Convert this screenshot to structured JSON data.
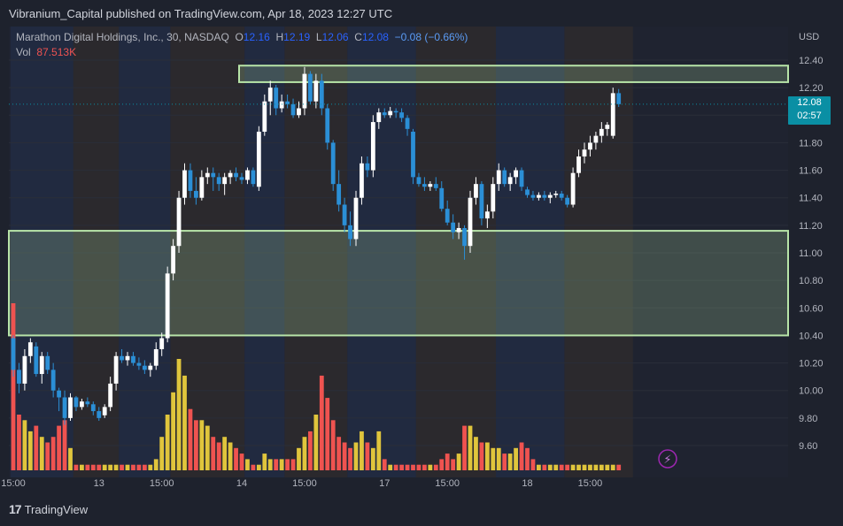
{
  "header": {
    "published": "Vibranium_Capital published on TradingView.com, Apr 18, 2023 12:27 UTC"
  },
  "legend": {
    "symbol": "Marathon Digital Holdings, Inc., 30, NASDAQ",
    "o_label": "O",
    "o": "12.16",
    "h_label": "H",
    "h": "12.19",
    "l_label": "L",
    "l": "12.06",
    "c_label": "C",
    "c": "12.08",
    "change": "−0.08 (−0.66%)",
    "vol_label": "Vol",
    "vol": "87.513K"
  },
  "price_tag": {
    "price": "12.08",
    "countdown": "02:57"
  },
  "footer": {
    "brand": "TradingView",
    "logo": "17"
  },
  "colors": {
    "up": "#ffffff",
    "down": "#2b8fd6",
    "vol_up": "#e0c53c",
    "vol_down": "#ef5350",
    "zone": "#b7e4a8",
    "bg": "#1e222d",
    "session_blue": "#23324f",
    "session_brown": "#35302c"
  },
  "chart_data": {
    "type": "candlestick",
    "currency": "USD",
    "timeframe": "30",
    "y_ticks": [
      "12.40",
      "12.20",
      "12.00",
      "11.80",
      "11.60",
      "11.40",
      "11.20",
      "11.00",
      "10.80",
      "10.60",
      "10.40",
      "10.20",
      "10.00",
      "9.80",
      "9.60"
    ],
    "ylim": [
      9.5,
      12.6
    ],
    "x_ticks": [
      {
        "label": "15:00",
        "index": 0
      },
      {
        "label": "13",
        "index": 15
      },
      {
        "label": "15:00",
        "index": 26
      },
      {
        "label": "14",
        "index": 40
      },
      {
        "label": "15:00",
        "index": 51
      },
      {
        "label": "17",
        "index": 65
      },
      {
        "label": "15:00",
        "index": 76
      },
      {
        "label": "18",
        "index": 90
      },
      {
        "label": "15:00",
        "index": 101
      }
    ],
    "zones": [
      {
        "top": 12.36,
        "bottom": 12.24,
        "start_index": 40
      },
      {
        "top": 11.16,
        "bottom": 10.4,
        "start_index": 0
      }
    ],
    "candles": [
      [
        10.38,
        10.4,
        10.1,
        10.15,
        30
      ],
      [
        10.15,
        10.2,
        9.98,
        10.05,
        10
      ],
      [
        10.05,
        10.3,
        10.0,
        10.25,
        9
      ],
      [
        10.25,
        10.38,
        10.2,
        10.35,
        7
      ],
      [
        10.32,
        10.35,
        10.1,
        10.12,
        8
      ],
      [
        10.12,
        10.28,
        10.05,
        10.25,
        6
      ],
      [
        10.25,
        10.28,
        10.12,
        10.15,
        5
      ],
      [
        10.15,
        10.2,
        9.95,
        10.0,
        6
      ],
      [
        10.0,
        10.02,
        9.85,
        9.95,
        8
      ],
      [
        9.95,
        10.0,
        9.75,
        9.8,
        9
      ],
      [
        9.8,
        9.98,
        9.78,
        9.95,
        4
      ],
      [
        9.95,
        9.96,
        9.85,
        9.88,
        1
      ],
      [
        9.88,
        9.94,
        9.86,
        9.92,
        1
      ],
      [
        9.92,
        9.95,
        9.88,
        9.9,
        1
      ],
      [
        9.9,
        9.92,
        9.82,
        9.85,
        1
      ],
      [
        9.85,
        9.88,
        9.78,
        9.8,
        1
      ],
      [
        9.82,
        9.9,
        9.8,
        9.88,
        1
      ],
      [
        9.88,
        10.1,
        9.85,
        10.05,
        1
      ],
      [
        10.05,
        10.28,
        10.0,
        10.25,
        1
      ],
      [
        10.25,
        10.3,
        10.2,
        10.22,
        1
      ],
      [
        10.22,
        10.28,
        10.18,
        10.25,
        1
      ],
      [
        10.25,
        10.28,
        10.18,
        10.2,
        1
      ],
      [
        10.2,
        10.24,
        10.15,
        10.18,
        1
      ],
      [
        10.18,
        10.22,
        10.12,
        10.15,
        1
      ],
      [
        10.15,
        10.2,
        10.1,
        10.18,
        1
      ],
      [
        10.18,
        10.35,
        10.15,
        10.3,
        2
      ],
      [
        10.3,
        10.42,
        10.25,
        10.38,
        6
      ],
      [
        10.38,
        10.9,
        10.35,
        10.85,
        10
      ],
      [
        10.85,
        11.1,
        10.8,
        11.05,
        14
      ],
      [
        11.05,
        11.45,
        11.0,
        11.4,
        20
      ],
      [
        11.4,
        11.65,
        11.35,
        11.6,
        17
      ],
      [
        11.6,
        11.65,
        11.4,
        11.45,
        11
      ],
      [
        11.45,
        11.55,
        11.35,
        11.4,
        9
      ],
      [
        11.4,
        11.6,
        11.38,
        11.55,
        9
      ],
      [
        11.55,
        11.62,
        11.5,
        11.58,
        8
      ],
      [
        11.58,
        11.62,
        11.45,
        11.55,
        6
      ],
      [
        11.55,
        11.58,
        11.45,
        11.5,
        5
      ],
      [
        11.5,
        11.58,
        11.42,
        11.55,
        6
      ],
      [
        11.55,
        11.6,
        11.5,
        11.58,
        5
      ],
      [
        11.58,
        11.62,
        11.52,
        11.55,
        4
      ],
      [
        11.55,
        11.58,
        11.5,
        11.53,
        3
      ],
      [
        11.53,
        11.62,
        11.5,
        11.6,
        2
      ],
      [
        11.6,
        11.62,
        11.48,
        11.5,
        1
      ],
      [
        11.48,
        11.92,
        11.45,
        11.88,
        1
      ],
      [
        11.88,
        12.15,
        11.85,
        12.1,
        3
      ],
      [
        12.1,
        12.25,
        12.0,
        12.2,
        2
      ],
      [
        12.2,
        12.22,
        12.0,
        12.05,
        2
      ],
      [
        12.05,
        12.15,
        12.02,
        12.1,
        2
      ],
      [
        12.1,
        12.15,
        12.05,
        12.08,
        2
      ],
      [
        12.08,
        12.12,
        11.98,
        12.0,
        2
      ],
      [
        12.0,
        12.1,
        11.98,
        12.05,
        4
      ],
      [
        12.05,
        12.35,
        12.0,
        12.3,
        6
      ],
      [
        12.3,
        12.32,
        12.08,
        12.1,
        7
      ],
      [
        12.1,
        12.3,
        12.05,
        12.25,
        10
      ],
      [
        12.25,
        12.3,
        12.0,
        12.05,
        17
      ],
      [
        12.05,
        12.08,
        11.75,
        11.8,
        13
      ],
      [
        11.8,
        11.82,
        11.45,
        11.5,
        9
      ],
      [
        11.5,
        11.6,
        11.3,
        11.35,
        6
      ],
      [
        11.35,
        11.4,
        11.15,
        11.2,
        5
      ],
      [
        11.2,
        11.3,
        11.05,
        11.1,
        4
      ],
      [
        11.1,
        11.45,
        11.05,
        11.4,
        5
      ],
      [
        11.4,
        11.7,
        11.35,
        11.65,
        7
      ],
      [
        11.65,
        11.7,
        11.55,
        11.6,
        5
      ],
      [
        11.6,
        12.0,
        11.55,
        11.95,
        4
      ],
      [
        11.95,
        12.05,
        11.9,
        12.02,
        7
      ],
      [
        12.02,
        12.05,
        11.98,
        12.0,
        2
      ],
      [
        12.0,
        12.06,
        11.98,
        12.03,
        1
      ],
      [
        12.03,
        12.05,
        11.98,
        12.02,
        1
      ],
      [
        12.02,
        12.05,
        11.95,
        11.98,
        1
      ],
      [
        11.98,
        12.0,
        11.85,
        11.9,
        1
      ],
      [
        11.88,
        11.9,
        11.5,
        11.55,
        1
      ],
      [
        11.55,
        11.58,
        11.48,
        11.5,
        1
      ],
      [
        11.5,
        11.55,
        11.45,
        11.48,
        1
      ],
      [
        11.48,
        11.52,
        11.45,
        11.5,
        1
      ],
      [
        11.5,
        11.55,
        11.45,
        11.47,
        1
      ],
      [
        11.47,
        11.52,
        11.3,
        11.32,
        2
      ],
      [
        11.32,
        11.38,
        11.2,
        11.22,
        3
      ],
      [
        11.22,
        11.28,
        11.1,
        11.15,
        2
      ],
      [
        11.15,
        11.22,
        11.1,
        11.18,
        3
      ],
      [
        11.18,
        11.2,
        10.95,
        11.05,
        8
      ],
      [
        11.05,
        11.45,
        11.0,
        11.4,
        8
      ],
      [
        11.4,
        11.55,
        11.35,
        11.5,
        6
      ],
      [
        11.5,
        11.52,
        11.2,
        11.25,
        5
      ],
      [
        11.25,
        11.35,
        11.18,
        11.3,
        5
      ],
      [
        11.3,
        11.55,
        11.25,
        11.5,
        4
      ],
      [
        11.5,
        11.65,
        11.45,
        11.6,
        4
      ],
      [
        11.6,
        11.62,
        11.48,
        11.5,
        3
      ],
      [
        11.5,
        11.58,
        11.45,
        11.55,
        3
      ],
      [
        11.55,
        11.62,
        11.5,
        11.6,
        4
      ],
      [
        11.6,
        11.62,
        11.45,
        11.48,
        5
      ],
      [
        11.46,
        11.48,
        11.4,
        11.42,
        4
      ],
      [
        11.42,
        11.45,
        11.38,
        11.4,
        2
      ],
      [
        11.4,
        11.44,
        11.38,
        11.42,
        1
      ],
      [
        11.42,
        11.45,
        11.38,
        11.4,
        1
      ],
      [
        11.4,
        11.44,
        11.36,
        11.42,
        1
      ],
      [
        11.42,
        11.45,
        11.4,
        11.43,
        1
      ],
      [
        11.43,
        11.45,
        11.38,
        11.4,
        1
      ],
      [
        11.4,
        11.42,
        11.33,
        11.35,
        1
      ],
      [
        11.35,
        11.62,
        11.33,
        11.58,
        1
      ],
      [
        11.58,
        11.75,
        11.55,
        11.7,
        1
      ],
      [
        11.7,
        11.8,
        11.65,
        11.75,
        1
      ],
      [
        11.75,
        11.85,
        11.7,
        11.8,
        1
      ],
      [
        11.8,
        11.88,
        11.75,
        11.85,
        1
      ],
      [
        11.85,
        11.95,
        11.8,
        11.9,
        1
      ],
      [
        11.9,
        11.95,
        11.85,
        11.93,
        1
      ],
      [
        11.85,
        12.2,
        11.83,
        12.16,
        1
      ],
      [
        12.16,
        12.19,
        12.06,
        12.08,
        1
      ]
    ]
  }
}
